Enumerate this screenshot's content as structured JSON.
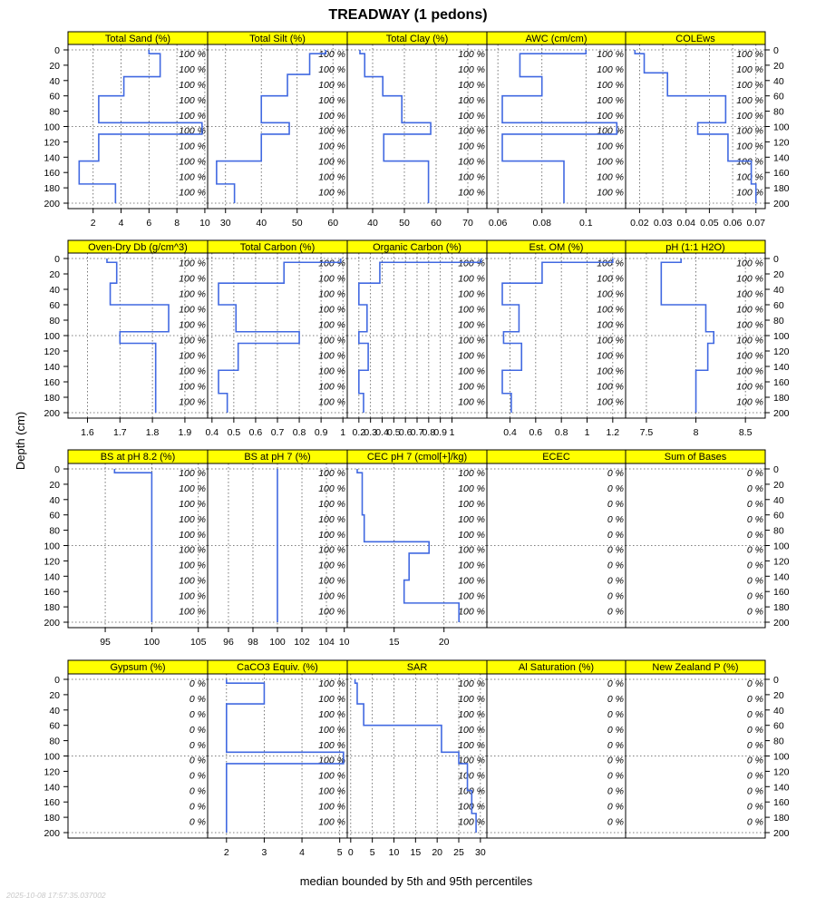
{
  "chart_data": {
    "type": "line",
    "title": "TREADWAY (1 pedons)",
    "ylabel": "Depth (cm)",
    "xlabel": "median bounded by 5th and 95th percentiles",
    "timestamp": "2025-10-08 17:57:35.037002",
    "ylim": [
      0,
      200
    ],
    "y_ticks": [
      0,
      20,
      40,
      60,
      80,
      100,
      120,
      140,
      160,
      180,
      200
    ],
    "line_color": "#4169e1",
    "strip_color": "#ffff00",
    "pct_depths": [
      5,
      25,
      45,
      65,
      85,
      105,
      125,
      145,
      165,
      185
    ],
    "panels": [
      {
        "title": "Total Sand (%)",
        "xlim": [
          0.2,
          10.2
        ],
        "x_ticks": [
          2,
          4,
          6,
          8,
          10
        ],
        "pct": "100 %",
        "depths": [
          0,
          5,
          5,
          35,
          35,
          60,
          60,
          95,
          95,
          110,
          110,
          145,
          145,
          175,
          175,
          200
        ],
        "values": [
          6.0,
          6.0,
          6.8,
          6.8,
          4.2,
          4.2,
          2.4,
          2.4,
          9.8,
          9.8,
          2.4,
          2.4,
          1.0,
          1.0,
          3.6,
          3.6
        ]
      },
      {
        "title": "Total Silt (%)",
        "xlim": [
          25,
          64
        ],
        "x_ticks": [
          30,
          40,
          50,
          60
        ],
        "pct": "100 %",
        "depths": [
          0,
          5,
          5,
          32,
          32,
          60,
          60,
          95,
          95,
          110,
          110,
          145,
          145,
          175,
          175,
          200
        ],
        "values": [
          58,
          58,
          53.5,
          53.5,
          47.3,
          47.3,
          40,
          40,
          47.8,
          47.8,
          40,
          40,
          27.5,
          27.5,
          32.5,
          32.5
        ]
      },
      {
        "title": "Total Clay (%)",
        "xlim": [
          32,
          76
        ],
        "x_ticks": [
          40,
          50,
          60,
          70
        ],
        "pct": "100 %",
        "depths": [
          0,
          5,
          5,
          35,
          35,
          60,
          60,
          95,
          95,
          110,
          110,
          145,
          145,
          200
        ],
        "values": [
          36,
          36,
          37.5,
          37.5,
          43.2,
          43.2,
          49.2,
          49.2,
          58.3,
          58.3,
          43.5,
          43.5,
          57.6,
          57.6
        ]
      },
      {
        "title": "AWC (cm/cm)",
        "xlim": [
          0.055,
          0.118
        ],
        "x_ticks": [
          0.06,
          0.08,
          0.1
        ],
        "pct": "100 %",
        "depths": [
          0,
          5,
          5,
          35,
          35,
          60,
          60,
          95,
          95,
          110,
          110,
          145,
          145,
          200
        ],
        "values": [
          0.1,
          0.1,
          0.07,
          0.07,
          0.08,
          0.08,
          0.062,
          0.062,
          0.114,
          0.114,
          0.062,
          0.062,
          0.09,
          0.09
        ]
      },
      {
        "title": "COLEws",
        "xlim": [
          0.014,
          0.074
        ],
        "x_ticks": [
          0.02,
          0.03,
          0.04,
          0.05,
          0.06,
          0.07
        ],
        "pct": "100 %",
        "depths": [
          0,
          5,
          5,
          30,
          30,
          60,
          60,
          95,
          95,
          110,
          110,
          145,
          145,
          175,
          175,
          200
        ],
        "values": [
          0.018,
          0.018,
          0.022,
          0.022,
          0.032,
          0.032,
          0.057,
          0.057,
          0.045,
          0.045,
          0.058,
          0.058,
          0.068,
          0.068,
          0.07,
          0.07
        ]
      },
      {
        "title": "Oven-Dry Db (g/cm^3)",
        "xlim": [
          1.54,
          1.97
        ],
        "x_ticks": [
          1.6,
          1.7,
          1.8,
          1.9
        ],
        "pct": "100 %",
        "depths": [
          0,
          5,
          5,
          32,
          32,
          60,
          60,
          95,
          95,
          110,
          110,
          200
        ],
        "values": [
          1.66,
          1.66,
          1.69,
          1.69,
          1.67,
          1.67,
          1.85,
          1.85,
          1.7,
          1.7,
          1.81,
          1.81
        ]
      },
      {
        "title": "Total Carbon (%)",
        "xlim": [
          0.38,
          1.02
        ],
        "x_ticks": [
          0.4,
          0.5,
          0.6,
          0.7,
          0.8,
          0.9,
          1.0
        ],
        "pct": "100 %",
        "depths": [
          0,
          5,
          5,
          32,
          32,
          60,
          60,
          95,
          95,
          110,
          110,
          145,
          145,
          175,
          175,
          200
        ],
        "values": [
          0.99,
          0.99,
          0.73,
          0.73,
          0.43,
          0.43,
          0.51,
          0.51,
          0.8,
          0.8,
          0.52,
          0.52,
          0.43,
          0.43,
          0.47,
          0.47
        ]
      },
      {
        "title": "Organic Carbon (%)",
        "xlim": [
          0.1,
          1.3
        ],
        "x_ticks": [
          0.2,
          0.3,
          0.4,
          0.5,
          0.6,
          0.7,
          0.8,
          0.9,
          1.0
        ],
        "pct": "100 %",
        "depths": [
          0,
          5,
          5,
          32,
          32,
          60,
          60,
          95,
          95,
          110,
          110,
          145,
          145,
          175,
          175,
          200
        ],
        "values": [
          1.25,
          1.25,
          0.38,
          0.38,
          0.2,
          0.2,
          0.27,
          0.27,
          0.2,
          0.2,
          0.28,
          0.28,
          0.2,
          0.2,
          0.24,
          0.24
        ]
      },
      {
        "title": "Est. OM (%)",
        "xlim": [
          0.22,
          1.3
        ],
        "x_ticks": [
          0.4,
          0.6,
          0.8,
          1.0,
          1.2
        ],
        "pct": "100 %",
        "depths": [
          0,
          5,
          5,
          32,
          32,
          60,
          60,
          95,
          95,
          110,
          110,
          145,
          145,
          175,
          175,
          200
        ],
        "values": [
          1.2,
          1.2,
          0.65,
          0.65,
          0.34,
          0.34,
          0.47,
          0.47,
          0.35,
          0.35,
          0.49,
          0.49,
          0.34,
          0.34,
          0.41,
          0.41
        ]
      },
      {
        "title": "pH (1:1 H2O)",
        "xlim": [
          7.29,
          8.7
        ],
        "x_ticks": [
          7.5,
          8.0,
          8.5
        ],
        "pct": "100 %",
        "depths": [
          0,
          5,
          5,
          60,
          60,
          95,
          95,
          110,
          110,
          145,
          145,
          200
        ],
        "values": [
          7.85,
          7.85,
          7.65,
          7.65,
          8.1,
          8.1,
          8.18,
          8.18,
          8.12,
          8.12,
          8.0,
          8.0
        ]
      },
      {
        "title": "BS at pH 8.2 (%)",
        "xlim": [
          91,
          106
        ],
        "x_ticks": [
          95,
          100,
          105
        ],
        "pct": "100 %",
        "depths": [
          0,
          5,
          5,
          200
        ],
        "values": [
          96,
          96,
          100,
          100
        ]
      },
      {
        "title": "BS at pH 7 (%)",
        "xlim": [
          94.3,
          105.7
        ],
        "x_ticks": [
          96,
          98,
          100,
          102,
          104
        ],
        "pct": "100 %",
        "depths": [
          0,
          200
        ],
        "values": [
          100,
          100
        ]
      },
      {
        "title": "CEC pH 7 (cmol[+]/kg)",
        "xlim": [
          10.3,
          24.3
        ],
        "x_ticks": [
          10,
          15,
          20
        ],
        "pct": "100 %",
        "depths": [
          0,
          5,
          5,
          60,
          60,
          95,
          95,
          110,
          110,
          145,
          145,
          175,
          175,
          200
        ],
        "values": [
          11.3,
          11.3,
          11.8,
          11.8,
          12.0,
          12.0,
          18.5,
          18.5,
          16.5,
          16.5,
          16.0,
          16.0,
          21.5,
          21.5
        ]
      },
      {
        "title": "ECEC",
        "xlim": [
          0,
          1
        ],
        "x_ticks": [],
        "pct": "0 %",
        "depths": [],
        "values": []
      },
      {
        "title": "Sum of Bases",
        "xlim": [
          0,
          1
        ],
        "x_ticks": [],
        "pct": "0 %",
        "depths": [],
        "values": []
      },
      {
        "title": "Gypsum (%)",
        "xlim": [
          0,
          1
        ],
        "x_ticks": [],
        "pct": "0 %",
        "depths": [],
        "values": []
      },
      {
        "title": "CaCO3 Equiv. (%)",
        "xlim": [
          1.5,
          5.2
        ],
        "x_ticks": [
          2,
          3,
          4,
          5
        ],
        "pct": "100 %",
        "depths": [
          0,
          5,
          5,
          32,
          32,
          95,
          95,
          110,
          110,
          200
        ],
        "values": [
          2,
          2,
          3,
          3,
          2,
          2,
          5.1,
          5.1,
          2,
          2
        ]
      },
      {
        "title": "SAR",
        "xlim": [
          -0.8,
          31.5
        ],
        "x_ticks": [
          0,
          5,
          10,
          15,
          20,
          25,
          30
        ],
        "pct": "100 %",
        "depths": [
          0,
          5,
          5,
          32,
          32,
          60,
          60,
          95,
          95,
          110,
          110,
          145,
          145,
          175,
          175,
          200
        ],
        "values": [
          1,
          1,
          1.5,
          1.5,
          3,
          3,
          21,
          21,
          25,
          25,
          27,
          27,
          28,
          28,
          29,
          29
        ]
      },
      {
        "title": "Al Saturation (%)",
        "xlim": [
          0,
          1
        ],
        "x_ticks": [],
        "pct": "0 %",
        "depths": [],
        "values": []
      },
      {
        "title": "New Zealand P (%)",
        "xlim": [
          0,
          1
        ],
        "x_ticks": [],
        "pct": "0 %",
        "depths": [],
        "values": []
      }
    ]
  }
}
